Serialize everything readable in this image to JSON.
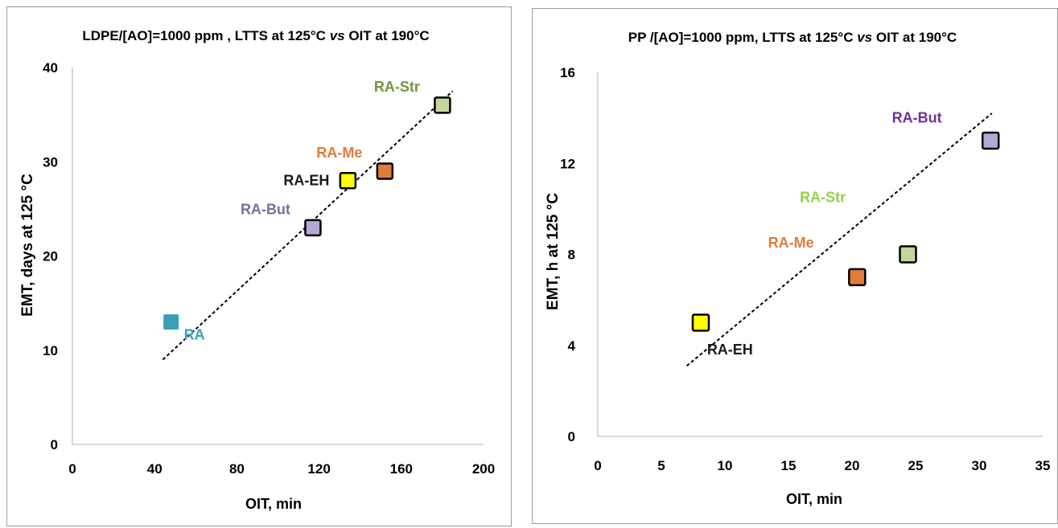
{
  "charts": [
    {
      "type": "scatter",
      "title": "LDPE/[AO]=1000 ppm , LTTS at 125°C vs OIT at 190°C",
      "title_parts": [
        "LDPE/[AO]=1000 ppm , LTTS at 125°C ",
        "vs",
        " OIT at 190°C"
      ],
      "xlabel": "OIT, min",
      "ylabel": "EMT, days at 125 °C",
      "xlim": [
        0,
        200
      ],
      "ylim": [
        0,
        40
      ],
      "xticks": [
        0,
        40,
        80,
        120,
        160,
        200
      ],
      "yticks": [
        0,
        10,
        20,
        30,
        40
      ],
      "grid": false,
      "points": [
        {
          "label": "RA",
          "x": 48,
          "y": 13,
          "color": "#3aa0b8",
          "label_color": "#3aa0b8",
          "outlined": false,
          "label_pos": "below-right"
        },
        {
          "label": "RA-But",
          "x": 117,
          "y": 23,
          "color": "#b4a7d6",
          "label_color": "#7e6ba3",
          "outlined": true,
          "label_pos": "upper-left"
        },
        {
          "label": "RA-EH",
          "x": 134,
          "y": 28,
          "color": "#ffff00",
          "label_color": "#1a1a1a",
          "outlined": true,
          "label_pos": "left"
        },
        {
          "label": "RA-Me",
          "x": 152,
          "y": 29,
          "color": "#e07b39",
          "label_color": "#e07b39",
          "outlined": true,
          "label_pos": "upper-left"
        },
        {
          "label": "RA-Str",
          "x": 180,
          "y": 36,
          "color": "#c4d79b",
          "label_color": "#77933c",
          "outlined": true,
          "label_pos": "upper-left"
        }
      ],
      "trendline": {
        "style": "dashed",
        "x": [
          44,
          185
        ],
        "y": [
          9,
          37.5
        ]
      }
    },
    {
      "type": "scatter",
      "title": "PP /[AO]=1000 ppm,  LTTS at 125°C vs OIT at 190°C",
      "title_parts": [
        "PP /[AO]=1000 ppm,  LTTS at 125°C ",
        "vs",
        " OIT at 190°C"
      ],
      "xlabel": "OIT, min",
      "ylabel": "EMT, h at 125 °C",
      "xlim": [
        0,
        35
      ],
      "ylim": [
        0,
        16
      ],
      "xticks": [
        0,
        5,
        10,
        15,
        20,
        25,
        30,
        35
      ],
      "yticks": [
        0,
        4,
        8,
        12,
        16
      ],
      "grid": false,
      "points": [
        {
          "label": "RA-EH",
          "x": 8.1,
          "y": 5,
          "color": "#ffff00",
          "label_color": "#1a1a1a",
          "outlined": true,
          "label_pos": "custom"
        },
        {
          "label": "RA-Me",
          "x": 20.4,
          "y": 7,
          "color": "#e07b39",
          "label_color": "#e07b39",
          "outlined": true,
          "label_pos": "custom"
        },
        {
          "label": "RA-Str",
          "x": 24.4,
          "y": 8,
          "color": "#c4d79b",
          "label_color": "#92d050",
          "outlined": true,
          "label_pos": "custom"
        },
        {
          "label": "RA-But",
          "x": 30.9,
          "y": 13,
          "color": "#b4a7d6",
          "label_color": "#7030a0",
          "outlined": true,
          "label_pos": "custom"
        }
      ],
      "label_anchors": [
        {
          "x": 10.4,
          "y": 3.6
        },
        {
          "x": 15.2,
          "y": 8.3
        },
        {
          "x": 17.7,
          "y": 10.3
        },
        {
          "x": 25.1,
          "y": 13.8
        }
      ],
      "trendline": {
        "style": "dashed",
        "x": [
          7,
          31
        ],
        "y": [
          3.1,
          14.2
        ]
      }
    }
  ]
}
